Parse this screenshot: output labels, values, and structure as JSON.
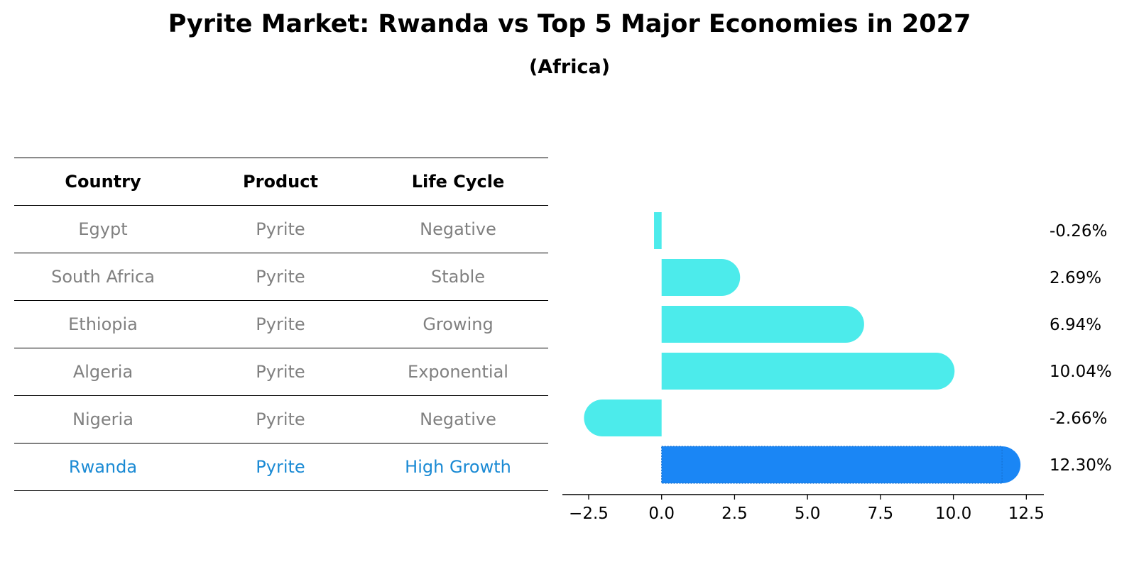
{
  "title": "Pyrite Market: Rwanda vs Top 5 Major Economies in 2027",
  "subtitle": "(Africa)",
  "table": {
    "headers": [
      "Country",
      "Product",
      "Life Cycle"
    ],
    "rows": [
      {
        "country": "Egypt",
        "product": "Pyrite",
        "life_cycle": "Negative"
      },
      {
        "country": "South Africa",
        "product": "Pyrite",
        "life_cycle": "Stable"
      },
      {
        "country": "Ethiopia",
        "product": "Pyrite",
        "life_cycle": "Growing"
      },
      {
        "country": "Algeria",
        "product": "Pyrite",
        "life_cycle": "Exponential"
      },
      {
        "country": "Nigeria",
        "product": "Pyrite",
        "life_cycle": "Negative"
      },
      {
        "country": "Rwanda",
        "product": "Pyrite",
        "life_cycle": "High Growth"
      }
    ]
  },
  "colors": {
    "bar": "#4cebeb",
    "highlight_bar": "#1a86f5",
    "highlight_text": "#1a8ad4",
    "muted_text": "#808080"
  },
  "chart_data": {
    "type": "bar",
    "orientation": "horizontal",
    "categories": [
      "Egypt",
      "South Africa",
      "Ethiopia",
      "Algeria",
      "Nigeria",
      "Rwanda"
    ],
    "values": [
      -0.26,
      2.69,
      6.94,
      10.04,
      -2.66,
      12.3
    ],
    "value_labels": [
      "-0.26%",
      "2.69%",
      "6.94%",
      "10.04%",
      "-2.66%",
      "12.30%"
    ],
    "highlight": "Rwanda",
    "xlim": [
      -3.4,
      13.1
    ],
    "xticks": [
      -2.5,
      0.0,
      2.5,
      5.0,
      7.5,
      10.0,
      12.5
    ],
    "xtick_labels": [
      "−2.5",
      "0.0",
      "2.5",
      "5.0",
      "7.5",
      "10.0",
      "12.5"
    ],
    "grid": false
  }
}
